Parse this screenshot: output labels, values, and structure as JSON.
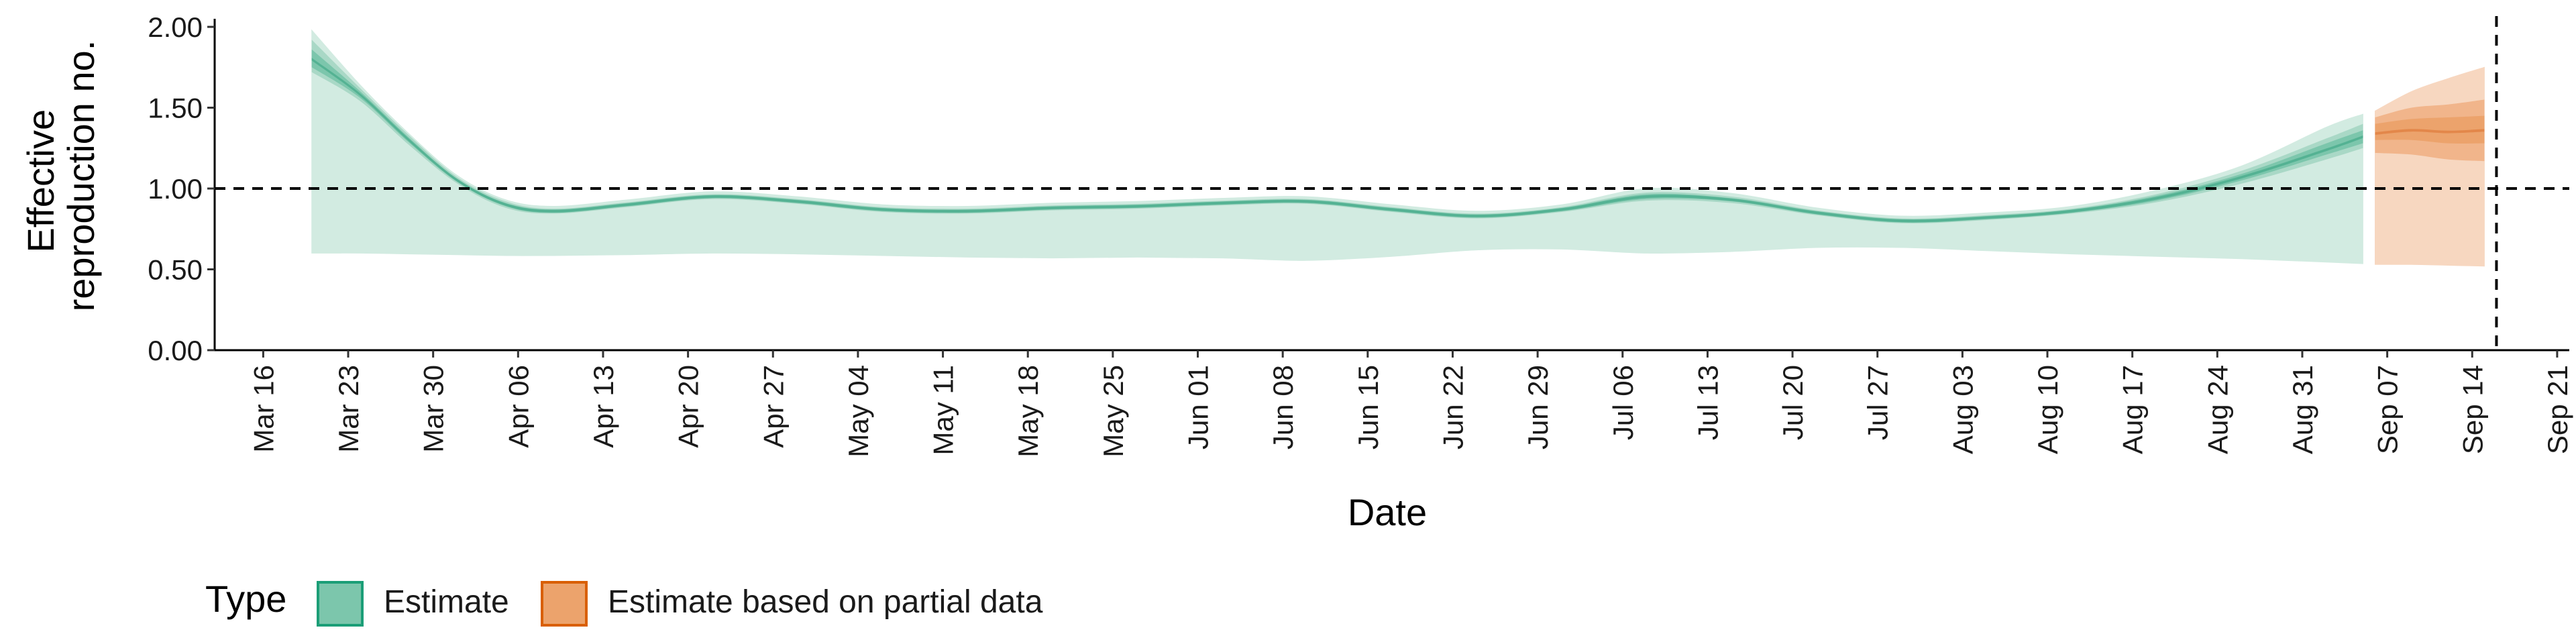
{
  "chart_data": {
    "type": "area",
    "xlabel": "Date",
    "ylabel_lines": [
      "Effective",
      "reproduction no."
    ],
    "ylim": [
      0,
      2.05
    ],
    "yticks": [
      "0.00",
      "0.50",
      "1.00",
      "1.50",
      "2.00"
    ],
    "xlim": [
      "2020-03-12",
      "2020-09-22"
    ],
    "xtick_dates": [
      "2020-03-16",
      "2020-03-23",
      "2020-03-30",
      "2020-04-06",
      "2020-04-13",
      "2020-04-20",
      "2020-04-27",
      "2020-05-04",
      "2020-05-11",
      "2020-05-18",
      "2020-05-25",
      "2020-06-01",
      "2020-06-08",
      "2020-06-15",
      "2020-06-22",
      "2020-06-29",
      "2020-07-06",
      "2020-07-13",
      "2020-07-20",
      "2020-07-27",
      "2020-08-03",
      "2020-08-10",
      "2020-08-17",
      "2020-08-24",
      "2020-08-31",
      "2020-09-07",
      "2020-09-14",
      "2020-09-21"
    ],
    "xtick_labels": [
      "Mar 16",
      "Mar 23",
      "Mar 30",
      "Apr 06",
      "Apr 13",
      "Apr 20",
      "Apr 27",
      "May 04",
      "May 11",
      "May 18",
      "May 25",
      "Jun 01",
      "Jun 08",
      "Jun 15",
      "Jun 22",
      "Jun 29",
      "Jul 06",
      "Jul 13",
      "Jul 20",
      "Jul 27",
      "Aug 03",
      "Aug 10",
      "Aug 17",
      "Aug 24",
      "Aug 31",
      "Sep 07",
      "Sep 14",
      "Sep 21"
    ],
    "reference_hline": 1.0,
    "reference_vline": "2020-09-16",
    "legend": {
      "title": "Type",
      "placement": "bottom-left",
      "entries": [
        {
          "label": "Estimate",
          "fill": "#7cc6ac",
          "border": "#1b9e77"
        },
        {
          "label": "Estimate based on partial data",
          "fill": "#eca36c",
          "border": "#d95f02"
        }
      ]
    },
    "series": [
      {
        "legend_ref": 0,
        "colors": {
          "outer": "#d2ebe1",
          "mid": "#a9d8c6",
          "inner": "#7cc6ac",
          "core": "#54b293"
        },
        "points": [
          {
            "date": "2020-03-20",
            "median": 1.8,
            "outer": [
              0.6,
              1.98
            ],
            "mid": [
              1.72,
              1.92
            ],
            "inner": [
              1.75,
              1.86
            ]
          },
          {
            "date": "2020-03-24",
            "median": 1.58,
            "outer": [
              0.6,
              1.64
            ],
            "mid": [
              1.54,
              1.62
            ],
            "inner": [
              1.56,
              1.6
            ]
          },
          {
            "date": "2020-03-28",
            "median": 1.3,
            "outer": [
              0.595,
              1.34
            ],
            "mid": [
              1.27,
              1.33
            ],
            "inner": [
              1.285,
              1.315
            ]
          },
          {
            "date": "2020-04-01",
            "median": 1.05,
            "outer": [
              0.59,
              1.08
            ],
            "mid": [
              1.03,
              1.07
            ],
            "inner": [
              1.04,
              1.06
            ]
          },
          {
            "date": "2020-04-05",
            "median": 0.9,
            "outer": [
              0.585,
              0.93
            ],
            "mid": [
              0.88,
              0.92
            ],
            "inner": [
              0.89,
              0.91
            ]
          },
          {
            "date": "2020-04-09",
            "median": 0.86,
            "outer": [
              0.585,
              0.89
            ],
            "mid": [
              0.845,
              0.875
            ],
            "inner": [
              0.85,
              0.87
            ]
          },
          {
            "date": "2020-04-15",
            "median": 0.9,
            "outer": [
              0.59,
              0.93
            ],
            "mid": [
              0.885,
              0.915
            ],
            "inner": [
              0.89,
              0.91
            ]
          },
          {
            "date": "2020-04-22",
            "median": 0.95,
            "outer": [
              0.6,
              0.98
            ],
            "mid": [
              0.935,
              0.965
            ],
            "inner": [
              0.94,
              0.96
            ]
          },
          {
            "date": "2020-04-29",
            "median": 0.92,
            "outer": [
              0.595,
              0.95
            ],
            "mid": [
              0.905,
              0.935
            ],
            "inner": [
              0.91,
              0.93
            ]
          },
          {
            "date": "2020-05-06",
            "median": 0.87,
            "outer": [
              0.585,
              0.9
            ],
            "mid": [
              0.855,
              0.885
            ],
            "inner": [
              0.86,
              0.88
            ]
          },
          {
            "date": "2020-05-13",
            "median": 0.86,
            "outer": [
              0.575,
              0.89
            ],
            "mid": [
              0.845,
              0.875
            ],
            "inner": [
              0.85,
              0.87
            ]
          },
          {
            "date": "2020-05-20",
            "median": 0.88,
            "outer": [
              0.57,
              0.91
            ],
            "mid": [
              0.865,
              0.895
            ],
            "inner": [
              0.87,
              0.89
            ]
          },
          {
            "date": "2020-05-27",
            "median": 0.89,
            "outer": [
              0.575,
              0.92
            ],
            "mid": [
              0.875,
              0.905
            ],
            "inner": [
              0.88,
              0.9
            ]
          },
          {
            "date": "2020-06-03",
            "median": 0.91,
            "outer": [
              0.57,
              0.94
            ],
            "mid": [
              0.895,
              0.925
            ],
            "inner": [
              0.9,
              0.92
            ]
          },
          {
            "date": "2020-06-10",
            "median": 0.92,
            "outer": [
              0.555,
              0.95
            ],
            "mid": [
              0.905,
              0.935
            ],
            "inner": [
              0.91,
              0.93
            ]
          },
          {
            "date": "2020-06-17",
            "median": 0.87,
            "outer": [
              0.58,
              0.9
            ],
            "mid": [
              0.855,
              0.885
            ],
            "inner": [
              0.86,
              0.88
            ]
          },
          {
            "date": "2020-06-24",
            "median": 0.83,
            "outer": [
              0.62,
              0.86
            ],
            "mid": [
              0.815,
              0.845
            ],
            "inner": [
              0.82,
              0.84
            ]
          },
          {
            "date": "2020-07-01",
            "median": 0.87,
            "outer": [
              0.625,
              0.9
            ],
            "mid": [
              0.855,
              0.885
            ],
            "inner": [
              0.86,
              0.88
            ]
          },
          {
            "date": "2020-07-08",
            "median": 0.95,
            "outer": [
              0.6,
              1.0
            ],
            "mid": [
              0.925,
              0.975
            ],
            "inner": [
              0.935,
              0.965
            ]
          },
          {
            "date": "2020-07-15",
            "median": 0.93,
            "outer": [
              0.61,
              0.97
            ],
            "mid": [
              0.91,
              0.95
            ],
            "inner": [
              0.92,
              0.94
            ]
          },
          {
            "date": "2020-07-22",
            "median": 0.85,
            "outer": [
              0.635,
              0.88
            ],
            "mid": [
              0.835,
              0.865
            ],
            "inner": [
              0.84,
              0.86
            ]
          },
          {
            "date": "2020-07-29",
            "median": 0.8,
            "outer": [
              0.635,
              0.83
            ],
            "mid": [
              0.785,
              0.815
            ],
            "inner": [
              0.79,
              0.81
            ]
          },
          {
            "date": "2020-08-05",
            "median": 0.82,
            "outer": [
              0.615,
              0.85
            ],
            "mid": [
              0.805,
              0.835
            ],
            "inner": [
              0.81,
              0.83
            ]
          },
          {
            "date": "2020-08-12",
            "median": 0.86,
            "outer": [
              0.595,
              0.89
            ],
            "mid": [
              0.845,
              0.875
            ],
            "inner": [
              0.85,
              0.87
            ]
          },
          {
            "date": "2020-08-19",
            "median": 0.94,
            "outer": [
              0.58,
              0.99
            ],
            "mid": [
              0.915,
              0.965
            ],
            "inner": [
              0.925,
              0.955
            ]
          },
          {
            "date": "2020-08-26",
            "median": 1.07,
            "outer": [
              0.565,
              1.14
            ],
            "mid": [
              1.03,
              1.11
            ],
            "inner": [
              1.05,
              1.09
            ]
          },
          {
            "date": "2020-09-02",
            "median": 1.24,
            "outer": [
              0.545,
              1.38
            ],
            "mid": [
              1.18,
              1.31
            ],
            "inner": [
              1.21,
              1.28
            ]
          },
          {
            "date": "2020-09-05",
            "median": 1.32,
            "outer": [
              0.535,
              1.46
            ],
            "mid": [
              1.25,
              1.4
            ],
            "inner": [
              1.28,
              1.36
            ]
          }
        ]
      },
      {
        "legend_ref": 1,
        "colors": {
          "outer": "#f7d7c0",
          "mid": "#f1b58b",
          "inner": "#eca36c",
          "core": "#e3874a"
        },
        "points": [
          {
            "date": "2020-09-06",
            "median": 1.34,
            "outer": [
              0.53,
              1.48
            ],
            "mid": [
              1.22,
              1.44
            ],
            "inner": [
              1.3,
              1.4
            ]
          },
          {
            "date": "2020-09-09",
            "median": 1.36,
            "outer": [
              0.53,
              1.6
            ],
            "mid": [
              1.21,
              1.5
            ],
            "inner": [
              1.3,
              1.43
            ]
          },
          {
            "date": "2020-09-12",
            "median": 1.35,
            "outer": [
              0.525,
              1.68
            ],
            "mid": [
              1.18,
              1.52
            ],
            "inner": [
              1.28,
              1.44
            ]
          },
          {
            "date": "2020-09-15",
            "median": 1.36,
            "outer": [
              0.52,
              1.75
            ],
            "mid": [
              1.17,
              1.55
            ],
            "inner": [
              1.28,
              1.45
            ]
          }
        ]
      }
    ]
  }
}
